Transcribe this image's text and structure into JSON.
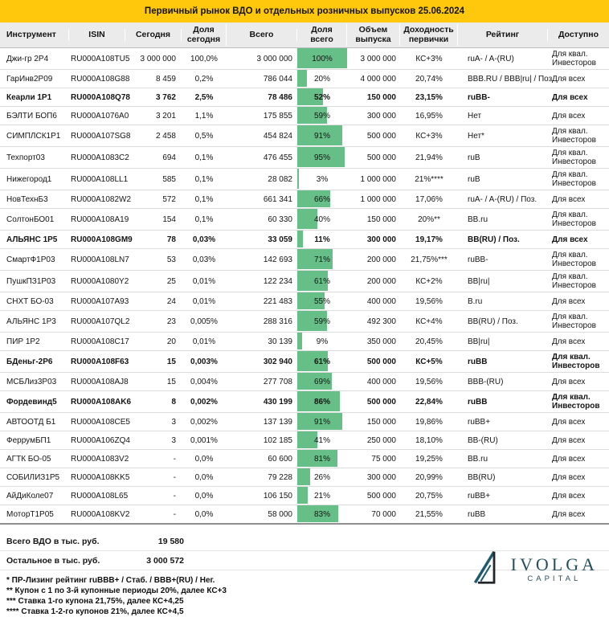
{
  "title": "Первичный рынок ВДО и отдельных розничных выпусков 25.06.2024",
  "colors": {
    "accent_yellow": "#ffc80d",
    "bar_green": "#66bf87",
    "header_gray": "#ebebeb",
    "logo_teal": "#23505f"
  },
  "table": {
    "columns": [
      "Инструмент",
      "ISIN",
      "Сегодня",
      "Доля сегодня",
      "Всего",
      "Доля всего",
      "Объем выпуска",
      "Доходность первички",
      "Рейтинг",
      "Доступно"
    ],
    "rows": [
      {
        "instrument": "Джи-гр 2Р4",
        "isin": "RU000A108TU5",
        "today": "3 000 000",
        "share_today": "100,0%",
        "total": "3 000 000",
        "share_total": "100%",
        "share_total_pct": 100,
        "volume": "3 000 000",
        "yield": "КС+3%",
        "rating": "ruA- / A-(RU)",
        "access": "Для квал. Инвесторов",
        "bold": false
      },
      {
        "instrument": "ГарИнв2Р09",
        "isin": "RU000A108G88",
        "today": "8 459",
        "share_today": "0,2%",
        "total": "786 044",
        "share_total": "20%",
        "share_total_pct": 20,
        "volume": "4 000 000",
        "yield": "20,74%",
        "rating": "BBB.RU / BBB|ru| / Поз.",
        "access": "Для всех",
        "bold": false
      },
      {
        "instrument": "Кеарли 1Р1",
        "isin": "RU000A108Q78",
        "today": "3 762",
        "share_today": "2,5%",
        "total": "78 486",
        "share_total": "52%",
        "share_total_pct": 52,
        "volume": "150 000",
        "yield": "23,15%",
        "rating": "ruBB-",
        "access": "Для всех",
        "bold": true
      },
      {
        "instrument": "БЭЛТИ БОП6",
        "isin": "RU000A1076A0",
        "today": "3 201",
        "share_today": "1,1%",
        "total": "175 855",
        "share_total": "59%",
        "share_total_pct": 59,
        "volume": "300 000",
        "yield": "16,95%",
        "rating": "Нет",
        "access": "Для всех",
        "bold": false
      },
      {
        "instrument": "СИМПЛСК1Р1",
        "isin": "RU000A107SG8",
        "today": "2 458",
        "share_today": "0,5%",
        "total": "454 824",
        "share_total": "91%",
        "share_total_pct": 91,
        "volume": "500 000",
        "yield": "КС+3%",
        "rating": "Нет*",
        "access": "Для квал. Инвесторов",
        "bold": false
      },
      {
        "instrument": "Техпорт03",
        "isin": "RU000A1083C2",
        "today": "694",
        "share_today": "0,1%",
        "total": "476 455",
        "share_total": "95%",
        "share_total_pct": 95,
        "volume": "500 000",
        "yield": "21,94%",
        "rating": "ruB",
        "access": "Для квал. Инвесторов",
        "bold": false
      },
      {
        "instrument": "Нижегород1",
        "isin": "RU000A108LL1",
        "today": "585",
        "share_today": "0,1%",
        "total": "28 082",
        "share_total": "3%",
        "share_total_pct": 3,
        "volume": "1 000 000",
        "yield": "21%****",
        "rating": "ruB",
        "access": "Для квал. Инвесторов",
        "bold": false
      },
      {
        "instrument": "НовТехнБ3",
        "isin": "RU000A1082W2",
        "today": "572",
        "share_today": "0,1%",
        "total": "661 341",
        "share_total": "66%",
        "share_total_pct": 66,
        "volume": "1 000 000",
        "yield": "17,06%",
        "rating": "ruA- / A-(RU) / Поз.",
        "access": "Для всех",
        "bold": false
      },
      {
        "instrument": "СолтонБО01",
        "isin": "RU000A108A19",
        "today": "154",
        "share_today": "0,1%",
        "total": "60 330",
        "share_total": "40%",
        "share_total_pct": 40,
        "volume": "150 000",
        "yield": "20%**",
        "rating": "BB.ru",
        "access": "Для квал. Инвесторов",
        "bold": false
      },
      {
        "instrument": "АЛЬЯНС 1Р5",
        "isin": "RU000A108GM9",
        "today": "78",
        "share_today": "0,03%",
        "total": "33 059",
        "share_total": "11%",
        "share_total_pct": 11,
        "volume": "300 000",
        "yield": "19,17%",
        "rating": "BB(RU) / Поз.",
        "access": "Для всех",
        "bold": true
      },
      {
        "instrument": "СмартФ1Р03",
        "isin": "RU000A108LN7",
        "today": "53",
        "share_today": "0,03%",
        "total": "142 693",
        "share_total": "71%",
        "share_total_pct": 71,
        "volume": "200 000",
        "yield": "21,75%***",
        "rating": "ruBB-",
        "access": "Для квал. Инвесторов",
        "bold": false
      },
      {
        "instrument": "ПушкПЗ1Р03",
        "isin": "RU000A1080Y2",
        "today": "25",
        "share_today": "0,01%",
        "total": "122 234",
        "share_total": "61%",
        "share_total_pct": 61,
        "volume": "200 000",
        "yield": "КС+2%",
        "rating": "BB|ru|",
        "access": "Для квал. Инвесторов",
        "bold": false
      },
      {
        "instrument": "СНХТ БО-03",
        "isin": "RU000A107A93",
        "today": "24",
        "share_today": "0,01%",
        "total": "221 483",
        "share_total": "55%",
        "share_total_pct": 55,
        "volume": "400 000",
        "yield": "19,56%",
        "rating": "B.ru",
        "access": "Для всех",
        "bold": false
      },
      {
        "instrument": "АЛЬЯНС 1Р3",
        "isin": "RU000A107QL2",
        "today": "23",
        "share_today": "0,005%",
        "total": "288 316",
        "share_total": "59%",
        "share_total_pct": 59,
        "volume": "492 300",
        "yield": "КС+4%",
        "rating": "BB(RU) / Поз.",
        "access": "Для квал. Инвесторов",
        "bold": false
      },
      {
        "instrument": "ПИР 1Р2",
        "isin": "RU000A108C17",
        "today": "20",
        "share_today": "0,01%",
        "total": "30 139",
        "share_total": "9%",
        "share_total_pct": 9,
        "volume": "350 000",
        "yield": "20,45%",
        "rating": "BB|ru|",
        "access": "Для всех",
        "bold": false
      },
      {
        "instrument": "БДеньг-2Р6",
        "isin": "RU000A108F63",
        "today": "15",
        "share_today": "0,003%",
        "total": "302 940",
        "share_total": "61%",
        "share_total_pct": 61,
        "volume": "500 000",
        "yield": "КС+5%",
        "rating": "ruBB",
        "access": "Для квал. Инвесторов",
        "bold": true
      },
      {
        "instrument": "МСБЛиз3Р03",
        "isin": "RU000A108AJ8",
        "today": "15",
        "share_today": "0,004%",
        "total": "277 708",
        "share_total": "69%",
        "share_total_pct": 69,
        "volume": "400 000",
        "yield": "19,56%",
        "rating": "BBB-(RU)",
        "access": "Для всех",
        "bold": false
      },
      {
        "instrument": "Фордевинд5",
        "isin": "RU000A108AK6",
        "today": "8",
        "share_today": "0,002%",
        "total": "430 199",
        "share_total": "86%",
        "share_total_pct": 86,
        "volume": "500 000",
        "yield": "22,84%",
        "rating": "ruBB",
        "access": "Для квал. Инвесторов",
        "bold": true
      },
      {
        "instrument": "АВТООТД Б1",
        "isin": "RU000A108CE5",
        "today": "3",
        "share_today": "0,002%",
        "total": "137 139",
        "share_total": "91%",
        "share_total_pct": 91,
        "volume": "150 000",
        "yield": "19,86%",
        "rating": "ruBB+",
        "access": "Для всех",
        "bold": false
      },
      {
        "instrument": "ФеррумБП1",
        "isin": "RU000A106ZQ4",
        "today": "3",
        "share_today": "0,001%",
        "total": "102 185",
        "share_total": "41%",
        "share_total_pct": 41,
        "volume": "250 000",
        "yield": "18,10%",
        "rating": "BB-(RU)",
        "access": "Для всех",
        "bold": false
      },
      {
        "instrument": "АГТК БО-05",
        "isin": "RU000A1083V2",
        "today": "-",
        "share_today": "0,0%",
        "total": "60 600",
        "share_total": "81%",
        "share_total_pct": 81,
        "volume": "75 000",
        "yield": "19,25%",
        "rating": "BB.ru",
        "access": "Для всех",
        "bold": false
      },
      {
        "instrument": "СОБИЛИЗ1Р5",
        "isin": "RU000A108KK5",
        "today": "-",
        "share_today": "0,0%",
        "total": "79 228",
        "share_total": "26%",
        "share_total_pct": 26,
        "volume": "300 000",
        "yield": "20,99%",
        "rating": "BB(RU)",
        "access": "Для всех",
        "bold": false
      },
      {
        "instrument": "АйДиКоле07",
        "isin": "RU000A108L65",
        "today": "-",
        "share_today": "0,0%",
        "total": "106 150",
        "share_total": "21%",
        "share_total_pct": 21,
        "volume": "500 000",
        "yield": "20,75%",
        "rating": "ruBB+",
        "access": "Для всех",
        "bold": false
      },
      {
        "instrument": "МоторТ1Р05",
        "isin": "RU000A108KV2",
        "today": "-",
        "share_today": "0,0%",
        "total": "58 000",
        "share_total": "83%",
        "share_total_pct": 83,
        "volume": "70 000",
        "yield": "21,55%",
        "rating": "ruBB",
        "access": "Для всех",
        "bold": false
      }
    ]
  },
  "summary": [
    {
      "label": "Всего ВДО в тыс. руб.",
      "value": "19 580"
    },
    {
      "label": "Остальное в тыс. руб.",
      "value": "3 000 572"
    }
  ],
  "footnotes": [
    "* ПР-Лизинг рейтинг ruBBB+ / Стаб. / BBB+(RU) / Нег.",
    "** Купон с 1 по 3-й купонные периоды 20%, далее КС+3",
    "*** Ставка 1-го купона 21,75%, далее КС+4,25",
    "**** Ставка 1-2-го купонов 21%, далее КС+4,5"
  ],
  "logo": {
    "title": "IVOLGA",
    "subtitle": "CAPITAL"
  }
}
